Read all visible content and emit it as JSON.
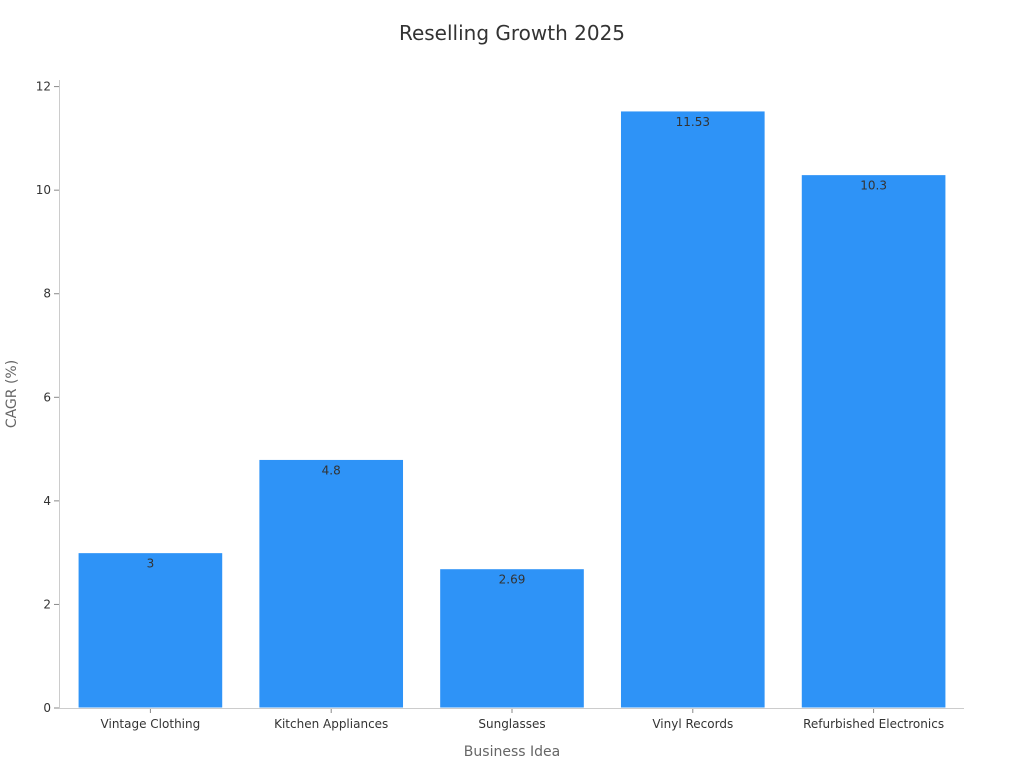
{
  "chart_data": {
    "type": "bar",
    "title": "Reselling Growth 2025",
    "xlabel": "Business Idea",
    "ylabel": "CAGR (%)",
    "categories": [
      "Vintage Clothing",
      "Kitchen Appliances",
      "Sunglasses",
      "Vinyl Records",
      "Refurbished Electronics"
    ],
    "values": [
      3,
      4.8,
      2.69,
      11.53,
      10.3
    ],
    "value_labels": [
      "3",
      "4.8",
      "2.69",
      "11.53",
      "10.3"
    ],
    "ylim": [
      0,
      12
    ],
    "yticks": [
      0,
      2,
      4,
      6,
      8,
      10,
      12
    ],
    "ytick_labels": [
      "0",
      "2",
      "4",
      "6",
      "8",
      "10",
      "12"
    ],
    "grid": false,
    "legend": "none",
    "bar_color": "#2E93F7"
  }
}
